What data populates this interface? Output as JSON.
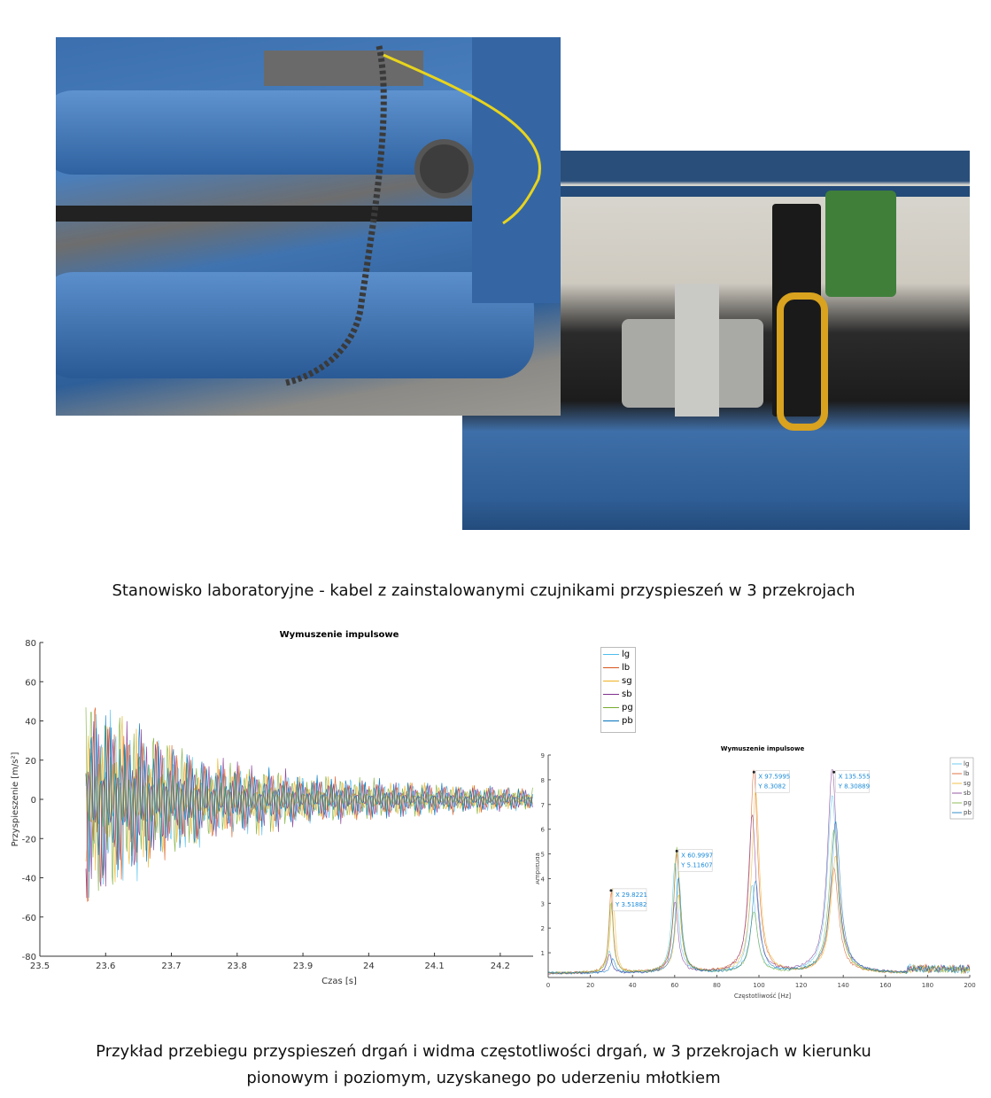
{
  "caption_top": "Stanowisko laboratoryjne - kabel z zainstalowanymi czujnikami przyspieszeń w 3 przekrojach",
  "caption_bottom": [
    "Przykład przebiegu przyspieszeń drgań i widma częstotliwości drgań, w 3 przekrojach w kierunku",
    "pionowym i poziomym, uzyskanego po uderzeniu młotkiem"
  ],
  "photos": [
    "laboratory stand - cable on blue frame",
    "close-up - accelerometer sensors on cable"
  ],
  "colors": {
    "lg": "#4DBEEE",
    "lb": "#D95319",
    "sg": "#EDB120",
    "sb": "#7E2F8E",
    "pg": "#77AC30",
    "pb": "#0072BD"
  },
  "chart_data": [
    {
      "type": "line",
      "title": "Wymuszenie impulsowe",
      "xlabel": "Czas [s]",
      "ylabel": "Przyspieszenie [m/s^2]",
      "xlim": [
        23.5,
        24.25
      ],
      "ylim": [
        -80,
        80
      ],
      "xticks": [
        "23.5",
        "23.6",
        "23.7",
        "23.8",
        "23.9",
        "24",
        "24.1",
        "24.2"
      ],
      "yticks": [
        "80",
        "60",
        "40",
        "20",
        "0",
        "-20",
        "-40",
        "-60",
        "-80"
      ],
      "impulse_time": 23.57,
      "envelope": {
        "t": [
          23.57,
          23.65,
          23.75,
          23.9,
          24.1,
          24.25
        ],
        "amplitude": [
          65,
          45,
          25,
          15,
          9,
          6
        ]
      },
      "series": [
        {
          "name": "lg"
        },
        {
          "name": "lb"
        },
        {
          "name": "sg"
        },
        {
          "name": "sb"
        },
        {
          "name": "pg"
        },
        {
          "name": "pb"
        }
      ],
      "legend": {
        "entries": [
          "lg",
          "lb",
          "sg",
          "sb",
          "pg",
          "pb"
        ],
        "placement": "outside-right"
      },
      "grid": false
    },
    {
      "type": "line",
      "title": "Wymuszenie impulsowe",
      "xlabel": "Częstotliwość [Hz]",
      "ylabel": "Amplituda",
      "xlim": [
        0,
        200
      ],
      "ylim": [
        0,
        9
      ],
      "xticks": [
        "0",
        "20",
        "40",
        "60",
        "80",
        "100",
        "120",
        "140",
        "160",
        "180",
        "200"
      ],
      "yticks": [
        "9",
        "8",
        "7",
        "6",
        "5",
        "4",
        "3",
        "2",
        "1"
      ],
      "series": [
        {
          "name": "lg"
        },
        {
          "name": "lb"
        },
        {
          "name": "sg"
        },
        {
          "name": "sb"
        },
        {
          "name": "pg"
        },
        {
          "name": "pb"
        }
      ],
      "peaks": [
        {
          "x": 29.8221,
          "y": 3.51882,
          "label_x": "X 29.8221",
          "label_y": "Y 3.51882"
        },
        {
          "x": 60.9997,
          "y": 5.11607,
          "label_x": "X 60.9997",
          "label_y": "Y 5.11607"
        },
        {
          "x": 97.5995,
          "y": 8.3082,
          "label_x": "X 97.5995",
          "label_y": "Y 8.3082"
        },
        {
          "x": 135.555,
          "y": 8.30889,
          "label_x": "X 135.555",
          "label_y": "Y 8.30889"
        }
      ],
      "legend": {
        "entries": [
          "lg",
          "lb",
          "sg",
          "sb",
          "pg",
          "pb"
        ],
        "placement": "top-right"
      },
      "grid": false
    }
  ]
}
